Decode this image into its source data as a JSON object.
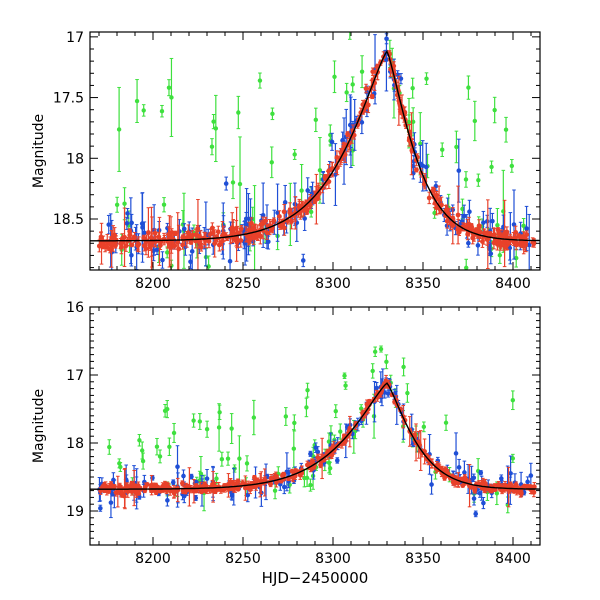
{
  "figure": {
    "xlabel": "HJD−2450000"
  },
  "colors": {
    "red": "#e8412a",
    "blue": "#1f4fd6",
    "green": "#3ee03e",
    "model": "#000000"
  },
  "chart_data": [
    {
      "type": "scatter",
      "title": "",
      "xlabel": "",
      "ylabel": "Magnitude",
      "xlim": [
        8165,
        8415
      ],
      "ylim": [
        18.92,
        16.96
      ],
      "y_inverted": true,
      "xticks": [
        8200,
        8250,
        8300,
        8350,
        8400
      ],
      "yticks": [
        17,
        17.5,
        18,
        18.5
      ],
      "ytick_labels": [
        "17",
        "17.5",
        "18",
        "18.5"
      ],
      "peak": {
        "x": 8330,
        "y": 17.12
      },
      "series": [
        {
          "color": "red",
          "kind": "model-following dense photometry with error bars"
        },
        {
          "color": "blue",
          "kind": "photometry with large error bars"
        },
        {
          "color": "green",
          "kind": "scattered photometry with error bars"
        },
        {
          "color": "model",
          "kind": "model curve (solid black line)"
        }
      ]
    },
    {
      "type": "scatter",
      "title": "",
      "xlabel": "HJD−2450000",
      "ylabel": "Magnitude",
      "xlim": [
        8165,
        8415
      ],
      "ylim": [
        19.5,
        16.0
      ],
      "y_inverted": true,
      "xticks": [
        8200,
        8250,
        8300,
        8350,
        8400
      ],
      "yticks": [
        16,
        17,
        18,
        19
      ],
      "ytick_labels": [
        "16",
        "17",
        "18",
        "19"
      ],
      "peak": {
        "x": 8330,
        "y": 17.12
      },
      "series": [
        {
          "color": "red",
          "kind": "model-following dense photometry with error bars"
        },
        {
          "color": "blue",
          "kind": "photometry with large error bars"
        },
        {
          "color": "green",
          "kind": "scattered photometry with error bars"
        },
        {
          "color": "model",
          "kind": "model curve (solid black line)"
        }
      ]
    }
  ]
}
